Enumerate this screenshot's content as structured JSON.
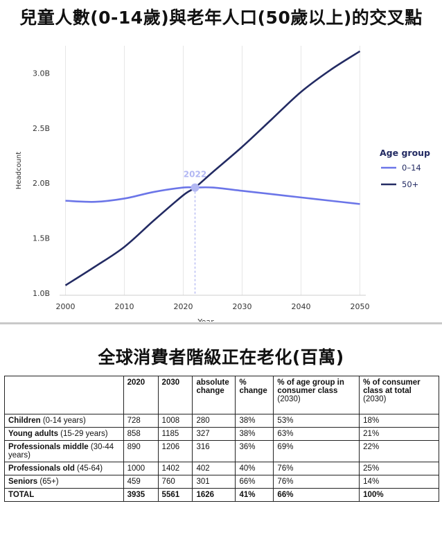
{
  "chart_title": "兒童人數(0-14歲)與老年人口(50歲以上)的交叉點",
  "table_title": "全球消費者階級正在老化(百萬)",
  "chart_data": {
    "type": "line",
    "xlabel": "Year",
    "ylabel": "Headcount",
    "xlim": [
      1999,
      2051
    ],
    "ylim": [
      0.98,
      3.25
    ],
    "x_ticks": [
      "2000",
      "2010",
      "2020",
      "2030",
      "2040",
      "2050"
    ],
    "y_ticks": [
      "1.0B",
      "1.5B",
      "2.0B",
      "2.5B",
      "3.0B"
    ],
    "legend_title": "Age group",
    "legend_position": "right",
    "grid": "vertical",
    "annotation": {
      "label": "2022",
      "x": 2022,
      "y": 1.96
    },
    "series": [
      {
        "name": "0–14",
        "color": "#6b75e8",
        "x": [
          2000,
          2005,
          2010,
          2015,
          2020,
          2022,
          2025,
          2030,
          2035,
          2040,
          2045,
          2050
        ],
        "y": [
          1.84,
          1.83,
          1.86,
          1.92,
          1.96,
          1.96,
          1.96,
          1.93,
          1.9,
          1.87,
          1.84,
          1.81
        ]
      },
      {
        "name": "50+",
        "color": "#232b63",
        "x": [
          2000,
          2005,
          2010,
          2015,
          2020,
          2022,
          2025,
          2030,
          2035,
          2040,
          2045,
          2050
        ],
        "y": [
          1.07,
          1.24,
          1.42,
          1.66,
          1.89,
          1.96,
          2.1,
          2.33,
          2.58,
          2.83,
          3.03,
          3.2
        ]
      }
    ]
  },
  "table": {
    "headers": [
      "",
      "2020",
      "2030",
      "absolute change",
      "% change",
      "% of age group in consumer class",
      "% of consumer class at total"
    ],
    "header_notes": [
      "",
      "",
      "",
      "",
      "",
      "(2030)",
      "(2030)"
    ],
    "rows": [
      {
        "label": "Children",
        "sub": " (0-14 years)",
        "cells": [
          "728",
          "1008",
          "280",
          "38%",
          "53%",
          "18%"
        ]
      },
      {
        "label": "Young adults",
        "sub": " (15-29 years)",
        "cells": [
          "858",
          "1185",
          "327",
          "38%",
          "63%",
          "21%"
        ]
      },
      {
        "label": "Professionals middle",
        "sub": " (30-44 years)",
        "cells": [
          "890",
          "1206",
          "316",
          "36%",
          "69%",
          "22%"
        ]
      },
      {
        "label": "Professionals old",
        "sub": " (45-64)",
        "cells": [
          "1000",
          "1402",
          "402",
          "40%",
          "76%",
          "25%"
        ]
      },
      {
        "label": "Seniors",
        "sub": " (65+)",
        "cells": [
          "459",
          "760",
          "301",
          "66%",
          "76%",
          "14%"
        ]
      }
    ],
    "total": {
      "label": "TOTAL",
      "cells": [
        "3935",
        "5561",
        "1626",
        "41%",
        "66%",
        "100%"
      ]
    }
  }
}
